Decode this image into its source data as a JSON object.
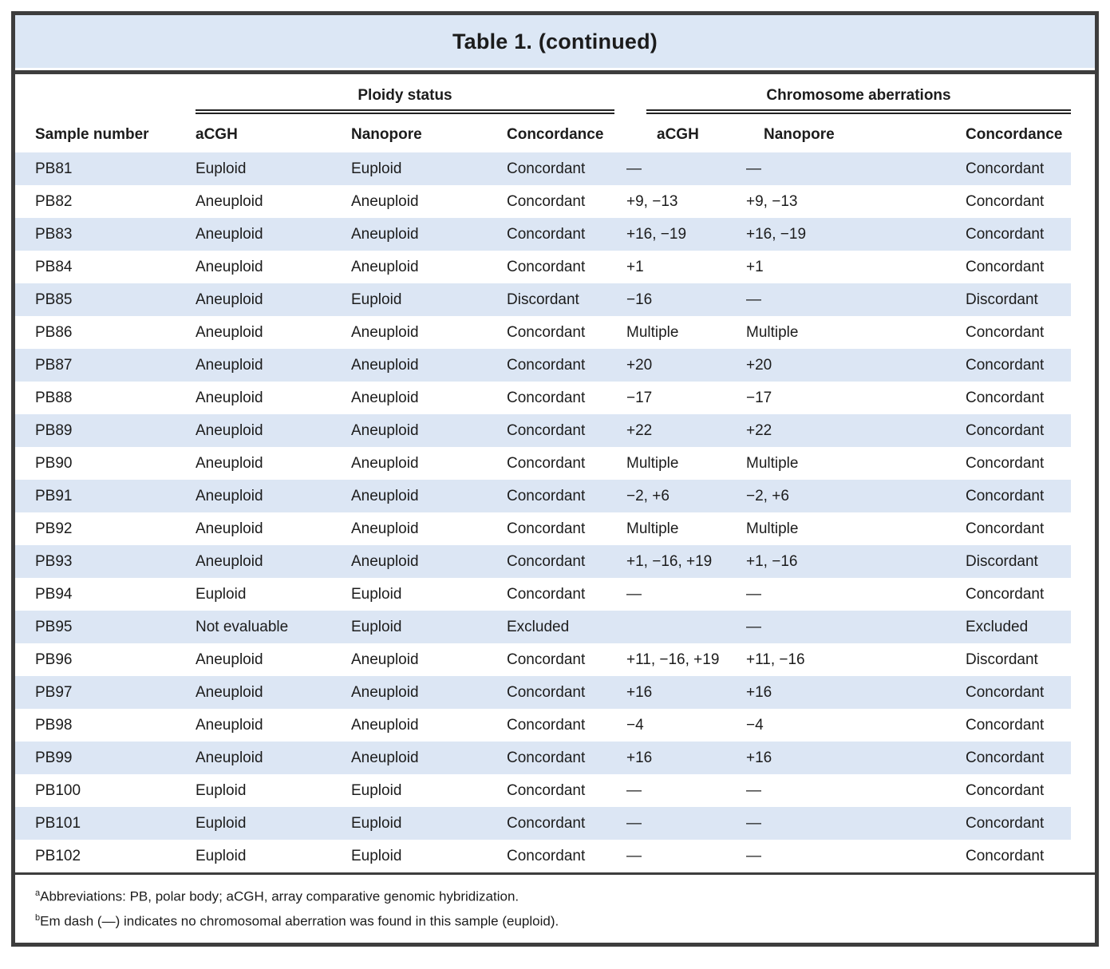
{
  "title": "Table 1. (continued)",
  "columns": {
    "sample": "Sample number",
    "groups": [
      {
        "label": "Ploidy status",
        "subcolumns": [
          "aCGH",
          "Nanopore",
          "Concordance"
        ]
      },
      {
        "label": "Chromosome aberrations",
        "subcolumns": [
          "aCGH",
          "Nanopore",
          "Concordance"
        ]
      }
    ]
  },
  "rows": [
    {
      "sample": "PB81",
      "ploidy_acgh": "Euploid",
      "ploidy_nanopore": "Euploid",
      "ploidy_concordance": "Concordant",
      "aberration_acgh": "—",
      "aberration_nanopore": "—",
      "aberration_concordance": "Concordant"
    },
    {
      "sample": "PB82",
      "ploidy_acgh": "Aneuploid",
      "ploidy_nanopore": "Aneuploid",
      "ploidy_concordance": "Concordant",
      "aberration_acgh": "+9, −13",
      "aberration_nanopore": "+9, −13",
      "aberration_concordance": "Concordant"
    },
    {
      "sample": "PB83",
      "ploidy_acgh": "Aneuploid",
      "ploidy_nanopore": "Aneuploid",
      "ploidy_concordance": "Concordant",
      "aberration_acgh": "+16, −19",
      "aberration_nanopore": "+16, −19",
      "aberration_concordance": "Concordant"
    },
    {
      "sample": "PB84",
      "ploidy_acgh": "Aneuploid",
      "ploidy_nanopore": "Aneuploid",
      "ploidy_concordance": "Concordant",
      "aberration_acgh": "+1",
      "aberration_nanopore": "+1",
      "aberration_concordance": "Concordant"
    },
    {
      "sample": "PB85",
      "ploidy_acgh": "Aneuploid",
      "ploidy_nanopore": "Euploid",
      "ploidy_concordance": "Discordant",
      "aberration_acgh": "−16",
      "aberration_nanopore": "—",
      "aberration_concordance": "Discordant"
    },
    {
      "sample": "PB86",
      "ploidy_acgh": "Aneuploid",
      "ploidy_nanopore": "Aneuploid",
      "ploidy_concordance": "Concordant",
      "aberration_acgh": "Multiple",
      "aberration_nanopore": "Multiple",
      "aberration_concordance": "Concordant"
    },
    {
      "sample": "PB87",
      "ploidy_acgh": "Aneuploid",
      "ploidy_nanopore": "Aneuploid",
      "ploidy_concordance": "Concordant",
      "aberration_acgh": "+20",
      "aberration_nanopore": "+20",
      "aberration_concordance": "Concordant"
    },
    {
      "sample": "PB88",
      "ploidy_acgh": "Aneuploid",
      "ploidy_nanopore": "Aneuploid",
      "ploidy_concordance": "Concordant",
      "aberration_acgh": "−17",
      "aberration_nanopore": "−17",
      "aberration_concordance": "Concordant"
    },
    {
      "sample": "PB89",
      "ploidy_acgh": "Aneuploid",
      "ploidy_nanopore": "Aneuploid",
      "ploidy_concordance": "Concordant",
      "aberration_acgh": "+22",
      "aberration_nanopore": "+22",
      "aberration_concordance": "Concordant"
    },
    {
      "sample": "PB90",
      "ploidy_acgh": "Aneuploid",
      "ploidy_nanopore": "Aneuploid",
      "ploidy_concordance": "Concordant",
      "aberration_acgh": "Multiple",
      "aberration_nanopore": "Multiple",
      "aberration_concordance": "Concordant"
    },
    {
      "sample": "PB91",
      "ploidy_acgh": "Aneuploid",
      "ploidy_nanopore": "Aneuploid",
      "ploidy_concordance": "Concordant",
      "aberration_acgh": "−2, +6",
      "aberration_nanopore": "−2, +6",
      "aberration_concordance": "Concordant"
    },
    {
      "sample": "PB92",
      "ploidy_acgh": "Aneuploid",
      "ploidy_nanopore": "Aneuploid",
      "ploidy_concordance": "Concordant",
      "aberration_acgh": "Multiple",
      "aberration_nanopore": "Multiple",
      "aberration_concordance": "Concordant"
    },
    {
      "sample": "PB93",
      "ploidy_acgh": "Aneuploid",
      "ploidy_nanopore": "Aneuploid",
      "ploidy_concordance": "Concordant",
      "aberration_acgh": "+1, −16, +19",
      "aberration_nanopore": "+1, −16",
      "aberration_concordance": "Discordant"
    },
    {
      "sample": "PB94",
      "ploidy_acgh": "Euploid",
      "ploidy_nanopore": "Euploid",
      "ploidy_concordance": "Concordant",
      "aberration_acgh": "—",
      "aberration_nanopore": "—",
      "aberration_concordance": "Concordant"
    },
    {
      "sample": "PB95",
      "ploidy_acgh": "Not evaluable",
      "ploidy_nanopore": "Euploid",
      "ploidy_concordance": "Excluded",
      "aberration_acgh": "",
      "aberration_nanopore": "—",
      "aberration_concordance": "Excluded"
    },
    {
      "sample": "PB96",
      "ploidy_acgh": "Aneuploid",
      "ploidy_nanopore": "Aneuploid",
      "ploidy_concordance": "Concordant",
      "aberration_acgh": "+11, −16, +19",
      "aberration_nanopore": "+11, −16",
      "aberration_concordance": "Discordant"
    },
    {
      "sample": "PB97",
      "ploidy_acgh": "Aneuploid",
      "ploidy_nanopore": "Aneuploid",
      "ploidy_concordance": "Concordant",
      "aberration_acgh": "+16",
      "aberration_nanopore": "+16",
      "aberration_concordance": "Concordant"
    },
    {
      "sample": "PB98",
      "ploidy_acgh": "Aneuploid",
      "ploidy_nanopore": "Aneuploid",
      "ploidy_concordance": "Concordant",
      "aberration_acgh": "−4",
      "aberration_nanopore": "−4",
      "aberration_concordance": "Concordant"
    },
    {
      "sample": "PB99",
      "ploidy_acgh": "Aneuploid",
      "ploidy_nanopore": "Aneuploid",
      "ploidy_concordance": "Concordant",
      "aberration_acgh": "+16",
      "aberration_nanopore": "+16",
      "aberration_concordance": "Concordant"
    },
    {
      "sample": "PB100",
      "ploidy_acgh": "Euploid",
      "ploidy_nanopore": "Euploid",
      "ploidy_concordance": "Concordant",
      "aberration_acgh": "—",
      "aberration_nanopore": "—",
      "aberration_concordance": "Concordant"
    },
    {
      "sample": "PB101",
      "ploidy_acgh": "Euploid",
      "ploidy_nanopore": "Euploid",
      "ploidy_concordance": "Concordant",
      "aberration_acgh": "—",
      "aberration_nanopore": "—",
      "aberration_concordance": "Concordant"
    },
    {
      "sample": "PB102",
      "ploidy_acgh": "Euploid",
      "ploidy_nanopore": "Euploid",
      "ploidy_concordance": "Concordant",
      "aberration_acgh": "—",
      "aberration_nanopore": "—",
      "aberration_concordance": "Concordant"
    }
  ],
  "footnotes": [
    {
      "marker": "a",
      "text": "Abbreviations: PB, polar body; aCGH, array comparative genomic hybridization."
    },
    {
      "marker": "b",
      "text": "Em dash (—) indicates no chromosomal aberration was found in this sample (euploid)."
    }
  ],
  "colors": {
    "title_bg": "#dce7f5",
    "row_shade": "#dce6f4",
    "frame_border": "#3d3d3d",
    "text": "#1c1c1c"
  }
}
